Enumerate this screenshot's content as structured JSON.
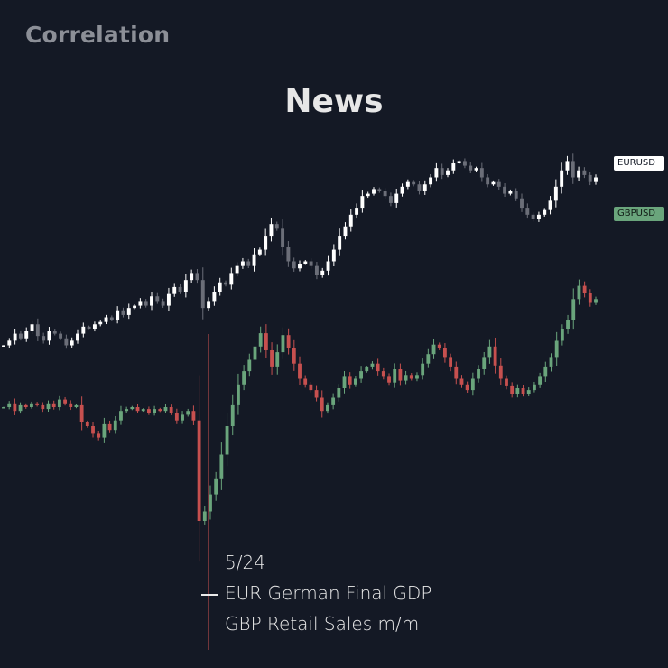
{
  "brand": "Correlation",
  "headline": "News",
  "labels": {
    "eur": "EURUSD",
    "gbp": "GBPUSD"
  },
  "event": {
    "date": "5/24",
    "line1": "EUR German Final GDP",
    "line2": "GBP Retail Sales m/m"
  },
  "colors": {
    "background": "#141925",
    "eur_up": "#ffffff",
    "eur_down": "#6b6e78",
    "gbp_up": "#6aa57c",
    "gbp_down": "#c7504f",
    "event_marker": "#c7504f"
  },
  "chart_data": {
    "type": "candlestick",
    "title": "News",
    "event_index": 36,
    "series": [
      {
        "name": "EURUSD",
        "closes": [
          1.081,
          1.0812,
          1.0815,
          1.0813,
          1.0816,
          1.0819,
          1.0814,
          1.0812,
          1.0816,
          1.0815,
          1.0813,
          1.081,
          1.0812,
          1.0815,
          1.0818,
          1.0817,
          1.0819,
          1.082,
          1.0822,
          1.0821,
          1.0825,
          1.0823,
          1.0826,
          1.0827,
          1.0829,
          1.0827,
          1.0831,
          1.0829,
          1.0827,
          1.0832,
          1.0835,
          1.0833,
          1.0838,
          1.0841,
          1.0838,
          1.0826,
          1.0829,
          1.0833,
          1.0837,
          1.0836,
          1.0841,
          1.0844,
          1.0846,
          1.0844,
          1.0849,
          1.0851,
          1.0857,
          1.0862,
          1.086,
          1.0852,
          1.0846,
          1.0843,
          1.0845,
          1.0846,
          1.0844,
          1.084,
          1.0842,
          1.0846,
          1.0851,
          1.0857,
          1.0861,
          1.0866,
          1.0869,
          1.0874,
          1.0875,
          1.0877,
          1.0876,
          1.0874,
          1.0871,
          1.0875,
          1.0878,
          1.088,
          1.0879,
          1.0876,
          1.0879,
          1.0882,
          1.0886,
          1.0883,
          1.0885,
          1.0888,
          1.0889,
          1.0887,
          1.0885,
          1.0886,
          1.0882,
          1.0879,
          1.088,
          1.0878,
          1.0875,
          1.0876,
          1.0873,
          1.0869,
          1.0866,
          1.0864,
          1.0866,
          1.0868,
          1.0872,
          1.0878,
          1.0885,
          1.0889,
          1.0882,
          1.0885,
          1.0883,
          1.088,
          1.0882
        ],
        "ylim": [
          1.078,
          1.09
        ]
      },
      {
        "name": "GBPUSD",
        "closes": [
          1.271,
          1.2712,
          1.2708,
          1.2711,
          1.271,
          1.2712,
          1.2711,
          1.2709,
          1.2712,
          1.271,
          1.2714,
          1.2712,
          1.271,
          1.2711,
          1.2702,
          1.27,
          1.2696,
          1.2694,
          1.2701,
          1.2698,
          1.2703,
          1.2708,
          1.2709,
          1.271,
          1.2708,
          1.2709,
          1.2707,
          1.2709,
          1.2708,
          1.271,
          1.2707,
          1.2703,
          1.2706,
          1.2708,
          1.2703,
          1.265,
          1.2655,
          1.2664,
          1.2672,
          1.2685,
          1.27,
          1.2711,
          1.2722,
          1.2729,
          1.2735,
          1.2742,
          1.2749,
          1.274,
          1.2731,
          1.2739,
          1.2748,
          1.2741,
          1.2733,
          1.2725,
          1.2722,
          1.2719,
          1.2715,
          1.2708,
          1.2711,
          1.2715,
          1.272,
          1.2726,
          1.2722,
          1.2725,
          1.2729,
          1.2731,
          1.2733,
          1.2729,
          1.2726,
          1.2723,
          1.273,
          1.2724,
          1.2727,
          1.2725,
          1.2727,
          1.2733,
          1.2738,
          1.2743,
          1.2741,
          1.2736,
          1.2731,
          1.2725,
          1.2722,
          1.2719,
          1.2725,
          1.273,
          1.2736,
          1.2742,
          1.2732,
          1.2725,
          1.2721,
          1.2717,
          1.272,
          1.2717,
          1.2719,
          1.2722,
          1.2726,
          1.2731,
          1.2736,
          1.2745,
          1.2751,
          1.2756,
          1.2767,
          1.2774,
          1.277,
          1.2765,
          1.2767
        ],
        "ylim": [
          1.262,
          1.28
        ]
      }
    ]
  }
}
